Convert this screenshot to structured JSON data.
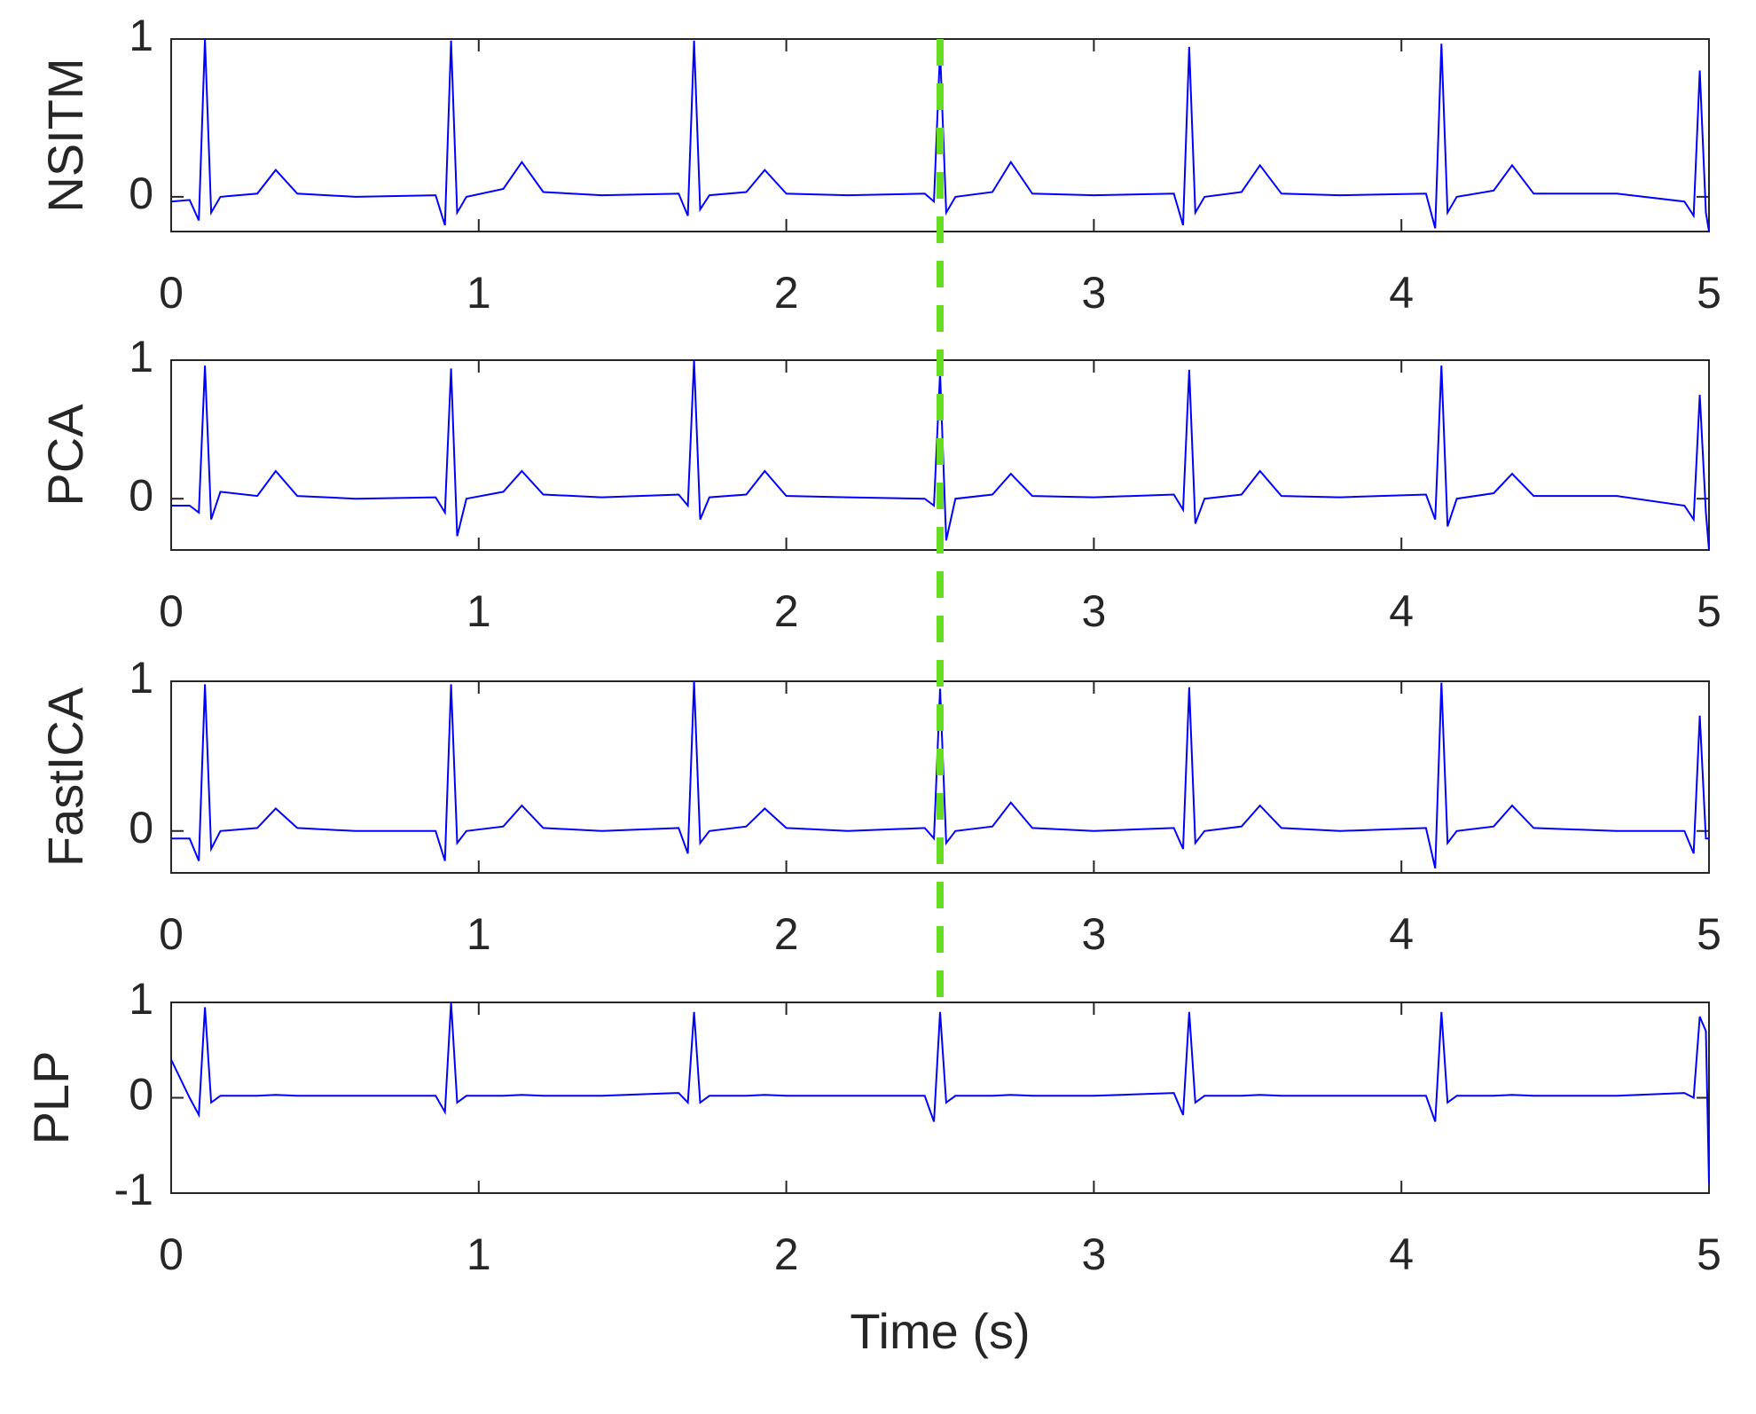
{
  "chart_data": [
    {
      "type": "line",
      "ylabel": "NSITM",
      "color": "#0000ff",
      "xlim": [
        0,
        5
      ],
      "xticks": [
        0,
        1,
        2,
        3,
        4,
        5
      ],
      "ylim": [
        -0.22,
        1
      ],
      "yticks": [
        0,
        1
      ],
      "vline": {
        "x": 2.5,
        "color": "#66dd22",
        "style": "dashed"
      },
      "x": [
        0,
        0.06,
        0.09,
        0.11,
        0.13,
        0.16,
        0.28,
        0.34,
        0.41,
        0.6,
        0.86,
        0.89,
        0.91,
        0.93,
        0.96,
        1.08,
        1.14,
        1.21,
        1.4,
        1.65,
        1.68,
        1.7,
        1.72,
        1.75,
        1.87,
        1.93,
        2.0,
        2.2,
        2.45,
        2.48,
        2.5,
        2.52,
        2.55,
        2.67,
        2.73,
        2.8,
        3.0,
        3.26,
        3.29,
        3.31,
        3.33,
        3.36,
        3.48,
        3.54,
        3.61,
        3.8,
        4.08,
        4.11,
        4.13,
        4.15,
        4.18,
        4.3,
        4.36,
        4.43,
        4.7,
        4.92,
        4.95,
        4.97,
        4.99,
        5.0
      ],
      "values": [
        -0.03,
        -0.02,
        -0.15,
        1.0,
        -0.1,
        0.0,
        0.02,
        0.17,
        0.02,
        0.0,
        0.01,
        -0.18,
        0.99,
        -0.1,
        0.0,
        0.05,
        0.22,
        0.03,
        0.01,
        0.02,
        -0.12,
        0.99,
        -0.08,
        0.01,
        0.03,
        0.17,
        0.02,
        0.01,
        0.02,
        -0.03,
        0.93,
        -0.1,
        0.0,
        0.03,
        0.22,
        0.02,
        0.01,
        0.02,
        -0.18,
        0.95,
        -0.1,
        0.0,
        0.03,
        0.2,
        0.02,
        0.01,
        0.02,
        -0.2,
        0.97,
        -0.1,
        0.0,
        0.04,
        0.2,
        0.02,
        0.02,
        -0.03,
        -0.12,
        0.8,
        -0.1,
        -0.22
      ]
    },
    {
      "type": "line",
      "ylabel": "PCA",
      "color": "#0000ff",
      "xlim": [
        0,
        5
      ],
      "xticks": [
        0,
        1,
        2,
        3,
        4,
        5
      ],
      "ylim": [
        -0.37,
        1
      ],
      "yticks": [
        0,
        1
      ],
      "x": [
        0,
        0.06,
        0.09,
        0.11,
        0.13,
        0.16,
        0.28,
        0.34,
        0.41,
        0.6,
        0.86,
        0.89,
        0.91,
        0.93,
        0.96,
        1.08,
        1.14,
        1.21,
        1.4,
        1.65,
        1.68,
        1.7,
        1.72,
        1.75,
        1.87,
        1.93,
        2.0,
        2.2,
        2.45,
        2.48,
        2.5,
        2.52,
        2.55,
        2.67,
        2.73,
        2.8,
        3.0,
        3.26,
        3.29,
        3.31,
        3.33,
        3.36,
        3.48,
        3.54,
        3.61,
        3.8,
        4.08,
        4.11,
        4.13,
        4.15,
        4.18,
        4.3,
        4.36,
        4.43,
        4.7,
        4.92,
        4.95,
        4.97,
        4.99,
        5.0
      ],
      "values": [
        -0.05,
        -0.05,
        -0.1,
        0.96,
        -0.15,
        0.05,
        0.02,
        0.2,
        0.02,
        0.0,
        0.01,
        -0.1,
        0.94,
        -0.27,
        0.0,
        0.05,
        0.2,
        0.03,
        0.01,
        0.03,
        -0.05,
        1.0,
        -0.15,
        0.01,
        0.03,
        0.2,
        0.02,
        0.01,
        0.0,
        -0.05,
        0.91,
        -0.3,
        0.0,
        0.03,
        0.18,
        0.02,
        0.01,
        0.03,
        -0.08,
        0.93,
        -0.18,
        0.0,
        0.03,
        0.2,
        0.02,
        0.01,
        0.03,
        -0.15,
        0.96,
        -0.2,
        0.0,
        0.04,
        0.18,
        0.02,
        0.02,
        -0.05,
        -0.15,
        0.75,
        -0.1,
        -0.37
      ]
    },
    {
      "type": "line",
      "ylabel": "FastICA",
      "color": "#0000ff",
      "xlim": [
        0,
        5
      ],
      "xticks": [
        0,
        1,
        2,
        3,
        4,
        5
      ],
      "ylim": [
        -0.28,
        1
      ],
      "yticks": [
        0,
        1
      ],
      "x": [
        0,
        0.06,
        0.09,
        0.11,
        0.13,
        0.16,
        0.28,
        0.34,
        0.41,
        0.6,
        0.86,
        0.89,
        0.91,
        0.93,
        0.96,
        1.08,
        1.14,
        1.21,
        1.4,
        1.65,
        1.68,
        1.7,
        1.72,
        1.75,
        1.87,
        1.93,
        2.0,
        2.2,
        2.45,
        2.48,
        2.5,
        2.52,
        2.55,
        2.67,
        2.73,
        2.8,
        3.0,
        3.26,
        3.29,
        3.31,
        3.33,
        3.36,
        3.48,
        3.54,
        3.61,
        3.8,
        4.08,
        4.11,
        4.13,
        4.15,
        4.18,
        4.3,
        4.36,
        4.43,
        4.7,
        4.92,
        4.95,
        4.97,
        4.99,
        5.0
      ],
      "values": [
        -0.05,
        -0.05,
        -0.2,
        0.98,
        -0.12,
        0.0,
        0.02,
        0.15,
        0.02,
        0.0,
        0.0,
        -0.2,
        0.98,
        -0.08,
        0.0,
        0.03,
        0.17,
        0.02,
        0.0,
        0.02,
        -0.15,
        1.0,
        -0.08,
        0.0,
        0.03,
        0.15,
        0.02,
        0.0,
        0.02,
        -0.05,
        0.95,
        -0.08,
        0.0,
        0.03,
        0.19,
        0.02,
        0.0,
        0.02,
        -0.12,
        0.96,
        -0.08,
        0.0,
        0.03,
        0.17,
        0.02,
        0.0,
        0.02,
        -0.25,
        0.99,
        -0.08,
        0.0,
        0.03,
        0.17,
        0.02,
        0.0,
        0.0,
        -0.15,
        0.77,
        -0.05,
        -0.05
      ]
    },
    {
      "type": "line",
      "ylabel": "PLP",
      "xlabel": "Time (s)",
      "color": "#0000ff",
      "xlim": [
        0,
        5
      ],
      "xticks": [
        0,
        1,
        2,
        3,
        4,
        5
      ],
      "ylim": [
        -1,
        1
      ],
      "yticks": [
        -1,
        0,
        1
      ],
      "x": [
        0,
        0.06,
        0.09,
        0.11,
        0.13,
        0.16,
        0.28,
        0.34,
        0.41,
        0.6,
        0.86,
        0.89,
        0.91,
        0.93,
        0.96,
        1.08,
        1.14,
        1.21,
        1.4,
        1.65,
        1.68,
        1.7,
        1.72,
        1.75,
        1.87,
        1.93,
        2.0,
        2.2,
        2.45,
        2.48,
        2.5,
        2.52,
        2.55,
        2.67,
        2.73,
        2.8,
        3.0,
        3.26,
        3.29,
        3.31,
        3.33,
        3.36,
        3.48,
        3.54,
        3.61,
        3.8,
        4.08,
        4.11,
        4.13,
        4.15,
        4.18,
        4.3,
        4.36,
        4.43,
        4.7,
        4.92,
        4.95,
        4.97,
        4.99,
        5.0
      ],
      "values": [
        0.4,
        0.0,
        -0.18,
        0.95,
        -0.05,
        0.02,
        0.02,
        0.03,
        0.02,
        0.02,
        0.02,
        -0.15,
        1.0,
        -0.05,
        0.02,
        0.02,
        0.03,
        0.02,
        0.02,
        0.05,
        -0.05,
        0.9,
        -0.05,
        0.02,
        0.02,
        0.03,
        0.02,
        0.02,
        0.02,
        -0.25,
        0.9,
        -0.05,
        0.02,
        0.02,
        0.03,
        0.02,
        0.02,
        0.05,
        -0.18,
        0.9,
        -0.05,
        0.02,
        0.02,
        0.03,
        0.02,
        0.02,
        0.02,
        -0.25,
        0.9,
        -0.05,
        0.02,
        0.02,
        0.03,
        0.02,
        0.02,
        0.05,
        0.0,
        0.85,
        0.7,
        -0.9
      ]
    }
  ]
}
